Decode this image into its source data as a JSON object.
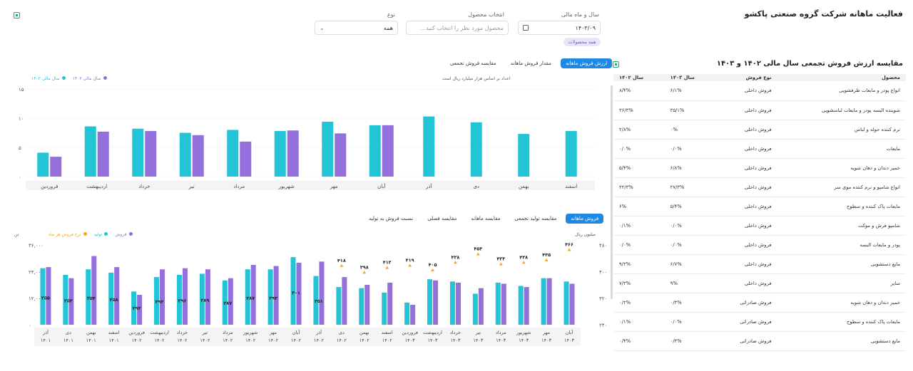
{
  "header": {
    "title": "فعالیت ماهانه شرکت گروه صنعتی پاکشو"
  },
  "filters": {
    "year_month_label": "سال و ماه مالی",
    "year_month_value": "۱۴۰۳/۰۹",
    "product_label": "انتخاب محصول",
    "product_placeholder": "محصول مورد نظر را انتخاب کنید...",
    "type_label": "نوع",
    "type_value": "همه",
    "all_products_tag": "همه محصولات"
  },
  "compare": {
    "title": "مقایسه ارزش فروش تجمعی سال مالی ۱۴۰۲ و ۱۴۰۳",
    "columns": [
      "محصول",
      "نوع فروش",
      "سال ۱۴۰۳",
      "سال ۱۴۰۲"
    ],
    "rows": [
      [
        "انواع پودر و مایعات ظرفشویی",
        "فروش داخلی",
        "۶/۱%",
        "۸/۴%"
      ],
      [
        "شوینده البسه پودر و مایعات لباسشویی",
        "فروش داخلی",
        "۳۵/۱%",
        "۳۶/۳%"
      ],
      [
        "نرم کننده حوله و لباس",
        "فروش داخلی",
        "۰%",
        "۲/۸%"
      ],
      [
        "مایعات",
        "فروش داخلی",
        "۰/۰%",
        "۰/۰%"
      ],
      [
        "خمیر دندان و دهان شویه",
        "فروش داخلی",
        "۶/۸%",
        "۵/۴%"
      ],
      [
        "انواع شامپو و نرم کننده موی سر",
        "فروش داخلی",
        "۲۷/۳%",
        "۲۲/۳%"
      ],
      [
        "مایعات پاک کننده و سطوح",
        "فروش داخلی",
        "۵/۴%",
        "۶%"
      ],
      [
        "شامپو فرش و موکت",
        "فروش داخلی",
        "۰/۰%",
        "۰/۱%"
      ],
      [
        "پودر و مایعات البسه",
        "فروش داخلی",
        "۰/۰%",
        "۰/۰%"
      ],
      [
        "مایع دستشویی",
        "فروش داخلی",
        "۶/۷%",
        "۹/۳%"
      ],
      [
        "سایر",
        "فروش داخلی",
        "۹%",
        "۷/۳%"
      ],
      [
        "خمیر دندان و دهان شویه",
        "فروش صادراتی",
        "۰/۳%",
        "۰/۲%"
      ],
      [
        "مایعات پاک کننده و سطوح",
        "فروش صادراتی",
        "۰/۰%",
        "۰/۱%"
      ],
      [
        "مایع دستشویی",
        "فروش صادراتی",
        "۰/۳%",
        "۰/۴%"
      ]
    ]
  },
  "top": {
    "tabs": [
      "ارزش فروش ماهانه",
      "مقدار فروش ماهانه",
      "مقایسه فروش تجمعی"
    ],
    "note": "اعداد بر اساس هزار میلیارد ریال است",
    "legend": [
      "سال مالی ۱۴۰۳",
      "سال مالی ۱۴۰۲"
    ]
  },
  "bottom": {
    "tabs": [
      "فروش ماهانه",
      "مقایسه تولید تجمعی",
      "مقایسه ماهانه",
      "مقایسه فصلی",
      "نسبت فروش به تولید"
    ],
    "legend": [
      "فروش",
      "تولید",
      "نرخ فروش هر ماه"
    ],
    "unit_left": "تن",
    "unit_right": "میلیون ریال"
  },
  "colors": {
    "accent": "#1e88e5",
    "teal": "#22c4d6",
    "purple": "#9370db",
    "rate": "#f5a623",
    "green": "#17b26a"
  },
  "chart_data": [
    {
      "type": "bar",
      "categories": [
        "اسفند",
        "بهمن",
        "دی",
        "آذر",
        "آبان",
        "مهر",
        "شهریور",
        "مرداد",
        "تیر",
        "خرداد",
        "اردیبهشت",
        "فروردین"
      ],
      "series": [
        {
          "name": "سال مالی ۱۴۰۳",
          "values": [
            7.8,
            7.3,
            9.3,
            10.3,
            8.8,
            7.4,
            7.9,
            6.0,
            7.1,
            7.8,
            7.7,
            3.4
          ]
        },
        {
          "name": "سال مالی ۱۴۰۲",
          "values": [
            null,
            null,
            null,
            null,
            8.8,
            9.4,
            7.8,
            8.0,
            7.5,
            8.2,
            8.6,
            4.1
          ]
        }
      ],
      "yticks": [
        "۱۵",
        "۱۰",
        "۵",
        "۰"
      ],
      "ylim": [
        0,
        15
      ]
    },
    {
      "type": "bar",
      "categories": [
        "آبان ۱۴۰۳",
        "مهر ۱۴۰۳",
        "شهریور ۱۴۰۳",
        "مرداد ۱۴۰۳",
        "تیر ۱۴۰۳",
        "خرداد ۱۴۰۳",
        "اردیبهشت ۱۴۰۳",
        "فروردین ۱۴۰۳",
        "اسفند ۱۴۰۲",
        "بهمن ۱۴۰۲",
        "دی ۱۴۰۲",
        "آذر ۱۴۰۲",
        "آبان ۱۴۰۲",
        "مهر ۱۴۰۲",
        "شهریور ۱۴۰۲",
        "مرداد ۱۴۰۲",
        "تیر ۱۴۰۲",
        "خرداد ۱۴۰۲",
        "اردیبهشت ۱۴۰۲",
        "فروردین ۱۴۰۲",
        "اسفند ۱۴۰۱",
        "بهمن ۱۴۰۱",
        "دی ۱۴۰۱",
        "آذر ۱۴۰۱"
      ],
      "series": [
        {
          "name": "فروش",
          "values": [
            19500,
            21000,
            17500,
            19000,
            14000,
            19500,
            20500,
            10000,
            14500,
            16500,
            17000,
            22000,
            30500,
            25000,
            25000,
            20000,
            23000,
            22500,
            21500,
            15000,
            23500,
            25000,
            22500,
            25500
          ]
        },
        {
          "name": "تولید",
          "values": [
            18500,
            21000,
            17000,
            18500,
            16500,
            19000,
            20000,
            9000,
            19000,
            18000,
            21500,
            28500,
            28000,
            26500,
            27000,
            21000,
            25000,
            25500,
            25000,
            13500,
            26000,
            31000,
            21000,
            26000
          ]
        },
        {
          "name": "نرخ فروش هر ماه",
          "values": [
            466,
            435,
            428,
            423,
            453,
            428,
            405,
            419,
            412,
            398,
            418,
            null,
            null,
            null,
            null,
            null,
            null,
            null,
            null,
            null,
            null,
            null,
            null,
            null
          ]
        }
      ],
      "bar_labels": [
        {
          "index": 11,
          "text": "۳۵۱"
        },
        {
          "index": 12,
          "text": "۳۰۱"
        },
        {
          "index": 13,
          "text": "۲۹۳"
        },
        {
          "index": 14,
          "text": "۲۸۷"
        },
        {
          "index": 15,
          "text": "۲۸۷"
        },
        {
          "index": 16,
          "text": "۲۸۹"
        },
        {
          "index": 17,
          "text": "۲۹۶"
        },
        {
          "index": 18,
          "text": "۲۹۳"
        },
        {
          "index": 19,
          "text": "۲۹۳"
        },
        {
          "index": 20,
          "text": "۲۵۸"
        },
        {
          "index": 21,
          "text": "۲۵۴"
        },
        {
          "index": 22,
          "text": "۲۵۳"
        },
        {
          "index": 23,
          "text": "۲۵۵"
        }
      ],
      "rate_labels": [
        "۴۶۶",
        "۴۳۵",
        "۴۲۸",
        "۴۲۳",
        "۴۵۳",
        "۴۲۸",
        "۴۰۵",
        "۴۱۹",
        "۴۱۲",
        "۳۹۸",
        "۴۱۸"
      ],
      "yticks_left": [
        "۳۶,۰۰۰",
        "۲۴,۰۰۰",
        "۱۲,۰۰۰",
        "۰"
      ],
      "yticks_right": [
        "۴۸۰",
        "۴۰۰",
        "۳۲۰",
        "۲۴۰"
      ],
      "ylim_left": [
        0,
        36000
      ],
      "ylim_right": [
        240,
        480
      ]
    }
  ]
}
